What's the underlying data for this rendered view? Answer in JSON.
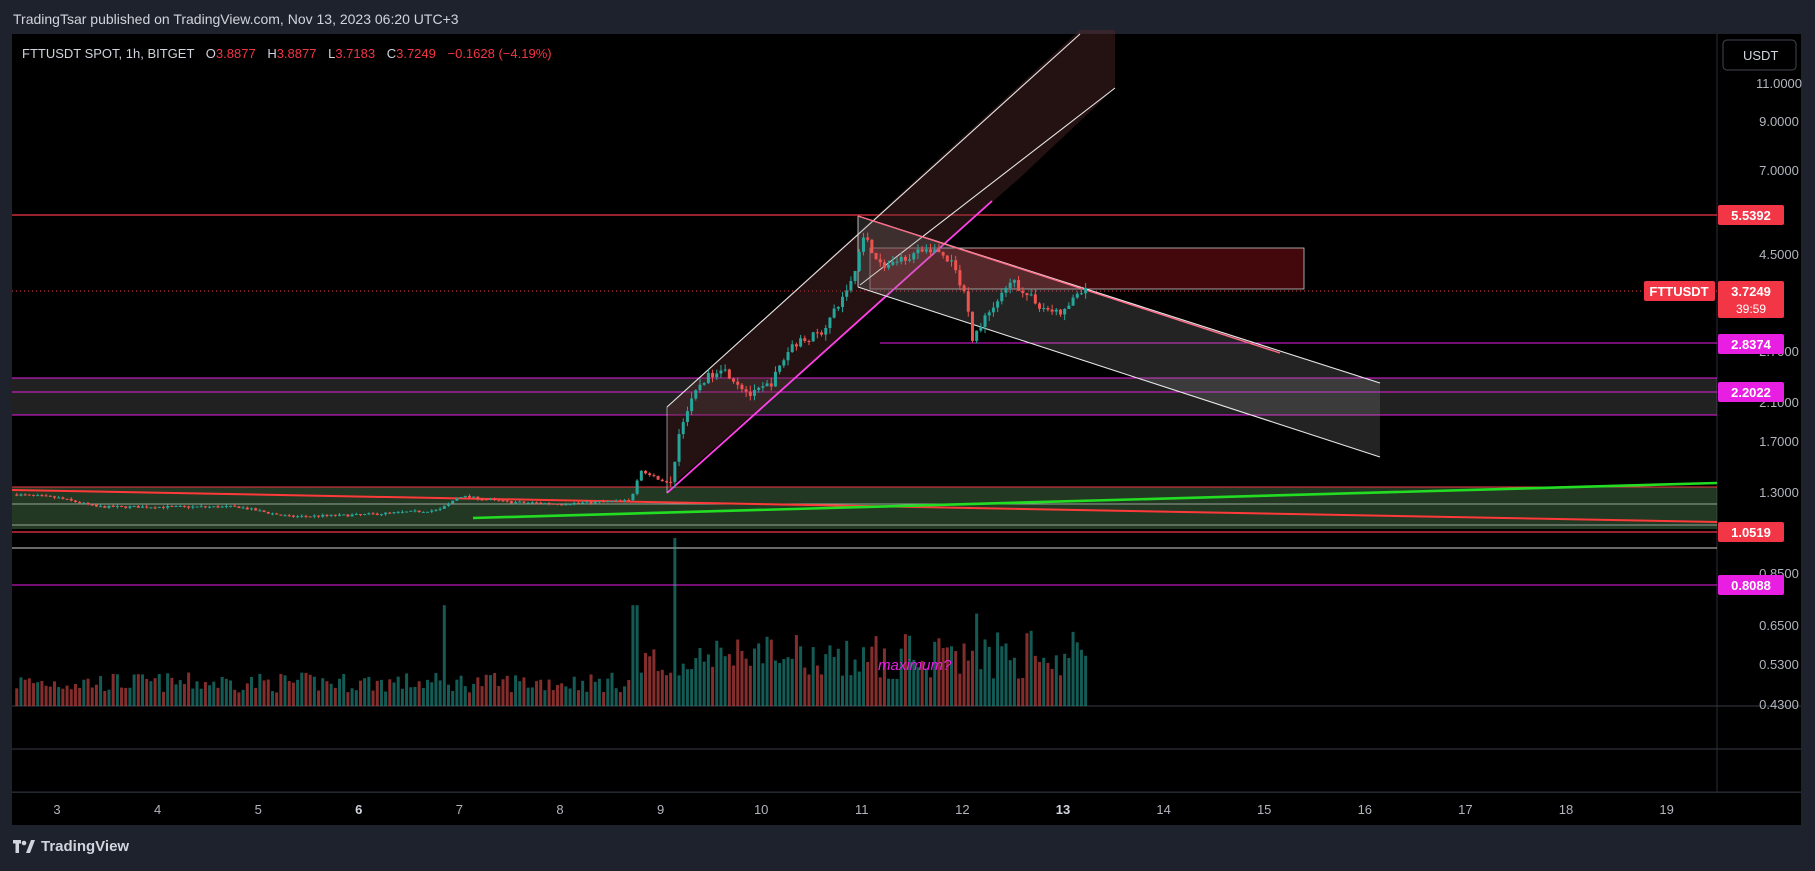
{
  "header": {
    "published_text": "TradingTsar published on TradingView.com, Nov 13, 2023 06:20 UTC+3"
  },
  "legend": {
    "symbol": "FTTUSDT SPOT, 1h, BITGET",
    "o_label": "O",
    "o_value": "3.8877",
    "h_label": "H",
    "h_value": "3.8877",
    "l_label": "L",
    "l_value": "3.7183",
    "c_label": "C",
    "c_value": "3.7249",
    "change": "−0.1628 (−4.19%)"
  },
  "currency_button": "USDT",
  "footer": {
    "brand": "TradingView"
  },
  "colors": {
    "background": "#000000",
    "up": "#26a69a",
    "down": "#ef5350",
    "accent_red": "#f23645",
    "magenta": "#e91ee3",
    "green_line": "#22dd22"
  },
  "chart_data": {
    "type": "candlestick",
    "symbol": "FTTUSDT",
    "timeframe": "1h",
    "exchange": "BITGET",
    "y_scale": "log",
    "x_ticks": [
      "3",
      "4",
      "5",
      "6",
      "7",
      "8",
      "9",
      "10",
      "11",
      "12",
      "13",
      "14",
      "15",
      "16",
      "17",
      "18",
      "19"
    ],
    "y_ticks": [
      "11.0000",
      "9.0000",
      "7.0000",
      "4.5000",
      "1.7000",
      "1.3000",
      "0.6500",
      "0.5300",
      "0.4300"
    ],
    "partially_hidden_ticks": [
      "2.7000",
      "2.1000",
      "0.8500"
    ],
    "price_labels": [
      {
        "value": "5.5392",
        "style": "red"
      },
      {
        "value": "3.7249",
        "style": "red",
        "symbol": "FTTUSDT",
        "countdown": "39:59"
      },
      {
        "value": "2.8374",
        "style": "magenta"
      },
      {
        "value": "2.2022",
        "style": "magenta"
      },
      {
        "value": "1.0519",
        "style": "red"
      },
      {
        "value": "0.8088",
        "style": "magenta"
      }
    ],
    "horizontal_levels": [
      5.5392,
      2.8374,
      2.2022,
      1.0519,
      0.8088
    ],
    "zones": [
      {
        "from": 1.95,
        "to": 2.4,
        "color": "magenta"
      },
      {
        "from": 1.0,
        "to": 1.3,
        "color": "green"
      },
      {
        "from": 3.75,
        "to": 4.65,
        "color": "red"
      }
    ],
    "annotation": "maximum?",
    "ohlc_last": {
      "open": 3.8877,
      "high": 3.8877,
      "low": 3.7183,
      "close": 3.7249
    },
    "change": -0.1628,
    "change_pct": -4.19,
    "price_path": [
      {
        "day": 2.6,
        "price": 1.28
      },
      {
        "day": 3.0,
        "price": 1.26
      },
      {
        "day": 3.4,
        "price": 1.2
      },
      {
        "day": 4.0,
        "price": 1.2
      },
      {
        "day": 4.8,
        "price": 1.2
      },
      {
        "day": 5.3,
        "price": 1.14
      },
      {
        "day": 6.0,
        "price": 1.15
      },
      {
        "day": 6.8,
        "price": 1.18
      },
      {
        "day": 7.0,
        "price": 1.27
      },
      {
        "day": 7.5,
        "price": 1.23
      },
      {
        "day": 8.0,
        "price": 1.22
      },
      {
        "day": 8.7,
        "price": 1.24
      },
      {
        "day": 8.8,
        "price": 1.45
      },
      {
        "day": 9.1,
        "price": 1.35
      },
      {
        "day": 9.2,
        "price": 1.85
      },
      {
        "day": 9.4,
        "price": 2.3
      },
      {
        "day": 9.6,
        "price": 2.5
      },
      {
        "day": 9.9,
        "price": 2.15
      },
      {
        "day": 10.1,
        "price": 2.3
      },
      {
        "day": 10.3,
        "price": 2.8
      },
      {
        "day": 10.6,
        "price": 3.0
      },
      {
        "day": 10.8,
        "price": 3.55
      },
      {
        "day": 10.95,
        "price": 4.2
      },
      {
        "day": 11.0,
        "price": 5.1
      },
      {
        "day": 11.2,
        "price": 4.2
      },
      {
        "day": 11.5,
        "price": 4.5
      },
      {
        "day": 11.7,
        "price": 4.65
      },
      {
        "day": 11.9,
        "price": 4.3
      },
      {
        "day": 12.05,
        "price": 3.5
      },
      {
        "day": 12.1,
        "price": 2.9
      },
      {
        "day": 12.25,
        "price": 3.3
      },
      {
        "day": 12.5,
        "price": 3.9
      },
      {
        "day": 12.8,
        "price": 3.4
      },
      {
        "day": 13.0,
        "price": 3.3
      },
      {
        "day": 13.15,
        "price": 3.7
      },
      {
        "day": 13.25,
        "price": 3.72
      }
    ],
    "volume_peaks": [
      {
        "day": 6.85,
        "rel": 0.6
      },
      {
        "day": 8.75,
        "rel": 0.6
      },
      {
        "day": 9.15,
        "rel": 1.0
      },
      {
        "day": 12.15,
        "rel": 0.55
      },
      {
        "day": 11.0,
        "rel": 0.35
      }
    ]
  }
}
